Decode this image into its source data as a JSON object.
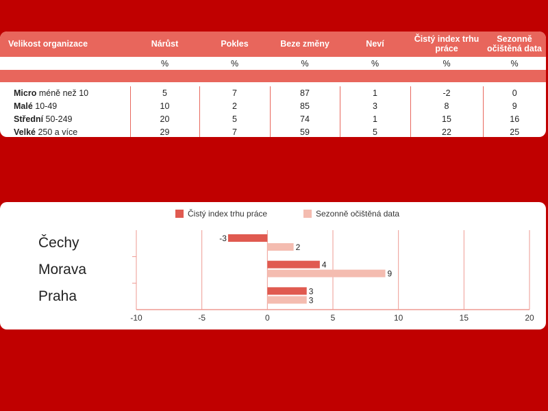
{
  "table": {
    "headers": [
      "Velikost organizace",
      "Nárůst",
      "Pokles",
      "Beze změny",
      "Neví",
      "Čistý index trhu práce",
      "Sezonně očištěná data"
    ],
    "units": [
      "",
      "%",
      "%",
      "%",
      "%",
      "%",
      "%"
    ],
    "rows": [
      {
        "size": "Micro",
        "range": "méně než 10",
        "values": [
          "5",
          "7",
          "87",
          "1",
          "-2",
          "0"
        ]
      },
      {
        "size": "Malé",
        "range": "10-49",
        "values": [
          "10",
          "2",
          "85",
          "3",
          "8",
          "9"
        ]
      },
      {
        "size": "Střední",
        "range": "50-249",
        "values": [
          "20",
          "5",
          "74",
          "1",
          "15",
          "16"
        ]
      },
      {
        "size": "Velké",
        "range": "250 a více",
        "values": [
          "29",
          "7",
          "59",
          "5",
          "22",
          "25"
        ]
      }
    ]
  },
  "chart_data": {
    "type": "bar",
    "orientation": "horizontal",
    "categories": [
      "Čechy",
      "Morava",
      "Praha"
    ],
    "series": [
      {
        "name": "Čistý index trhu práce",
        "values": [
          -3,
          4,
          3
        ],
        "color": "#e05a50"
      },
      {
        "name": "Sezonně očištěná data",
        "values": [
          2,
          9,
          3
        ],
        "color": "#f4bcb0"
      }
    ],
    "xlim": [
      -10,
      20
    ],
    "xticks": [
      -10,
      -5,
      0,
      5,
      10,
      15,
      20
    ],
    "grid": true,
    "legend_position": "top"
  },
  "colors": {
    "background": "#c00000",
    "accent": "#e8665c"
  }
}
